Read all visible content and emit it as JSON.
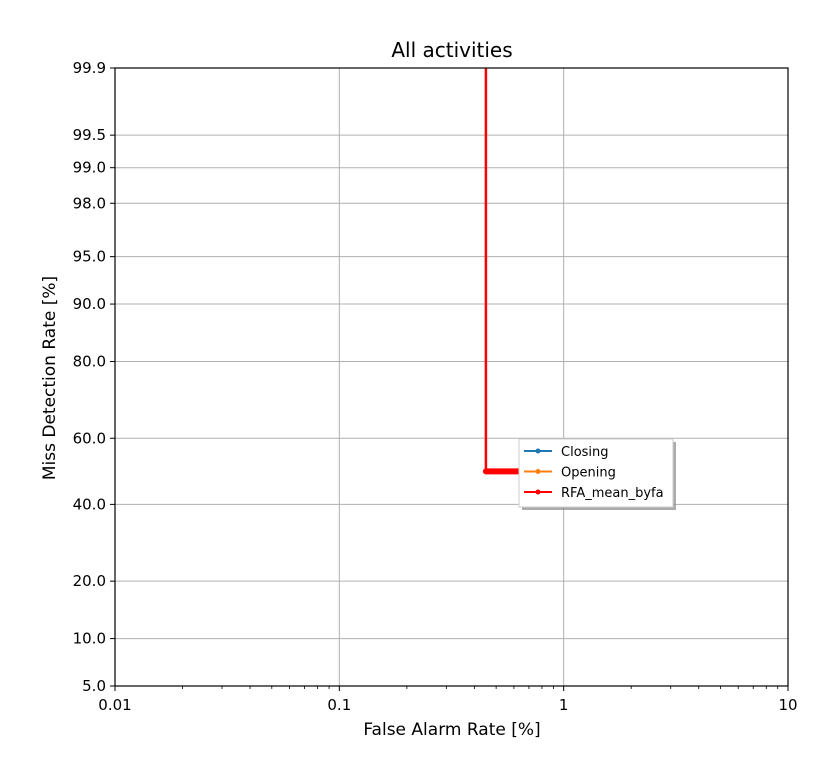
{
  "chart_data": {
    "type": "line",
    "title": "All activities",
    "xlabel": "False Alarm Rate [%]",
    "ylabel": "Miss Detection Rate [%]",
    "xscale": "log",
    "yscale": "normal-deviate (probit)",
    "xlim": [
      0.01,
      10
    ],
    "ylim": [
      5.0,
      99.9
    ],
    "grid": true,
    "x_ticks": [
      0.01,
      0.1,
      1,
      10
    ],
    "x_tick_labels": [
      "0.01",
      "0.1",
      "1",
      "10"
    ],
    "y_ticks": [
      5.0,
      10.0,
      20.0,
      40.0,
      60.0,
      80.0,
      90.0,
      95.0,
      98.0,
      99.0,
      99.5,
      99.9
    ],
    "y_tick_labels": [
      "5.0",
      "10.0",
      "20.0",
      "40.0",
      "60.0",
      "80.0",
      "90.0",
      "95.0",
      "98.0",
      "99.0",
      "99.5",
      "99.9"
    ],
    "legend_position": "center-right",
    "series": [
      {
        "name": "Closing",
        "color": "#1f77b4",
        "x": [],
        "y": []
      },
      {
        "name": "Opening",
        "color": "#ff7f0e",
        "x": [],
        "y": []
      },
      {
        "name": "RFA_mean_byfa",
        "color": "#ff0000",
        "x": [
          0.45,
          0.45,
          1.0
        ],
        "y": [
          99.9,
          50.0,
          50.0
        ]
      }
    ]
  }
}
